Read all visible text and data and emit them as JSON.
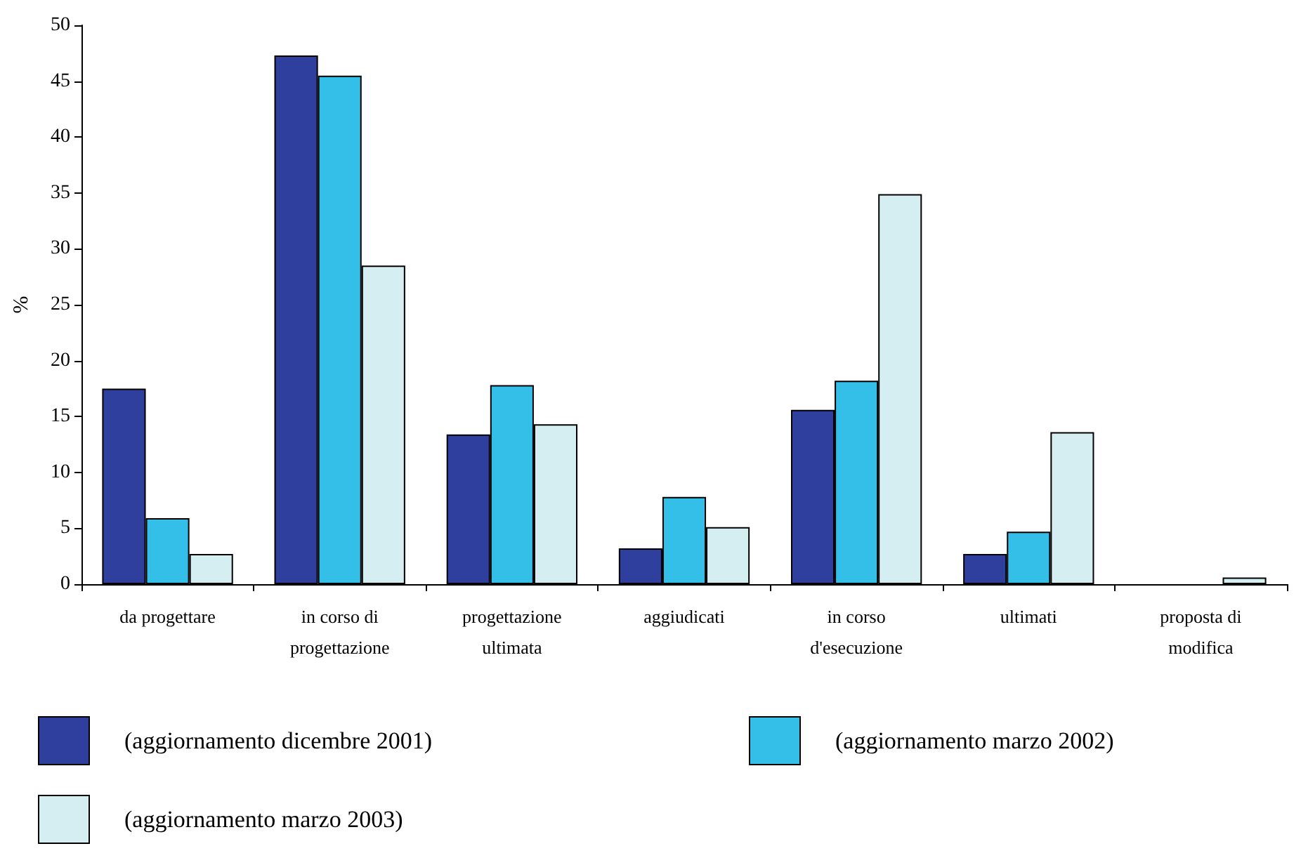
{
  "chart_data": {
    "type": "bar",
    "ylabel": "%",
    "categories": [
      "da progettare",
      "in corso di\nprogettazione",
      "progettazione\nultimata",
      "aggiudicati",
      "in corso\nd'esecuzione",
      "ultimati",
      "proposta di\nmodifica"
    ],
    "series": [
      {
        "name": "(aggiornamento dicembre 2001)",
        "color": "#2e3f9e",
        "values": [
          17.5,
          47.3,
          13.4,
          3.2,
          15.6,
          2.7,
          0
        ]
      },
      {
        "name": "(aggiornamento marzo 2002)",
        "color": "#33bfe8",
        "values": [
          5.9,
          45.5,
          17.8,
          7.8,
          18.2,
          4.7,
          0
        ]
      },
      {
        "name": "(aggiornamento marzo 2003)",
        "color": "#d4eef2",
        "values": [
          2.7,
          28.5,
          14.3,
          5.1,
          34.9,
          13.6,
          0.6
        ]
      }
    ],
    "ylim": [
      0,
      50
    ],
    "yticks": [
      0,
      5,
      10,
      15,
      20,
      25,
      30,
      35,
      40,
      45,
      50
    ],
    "grid": false,
    "legend": "bottom"
  }
}
